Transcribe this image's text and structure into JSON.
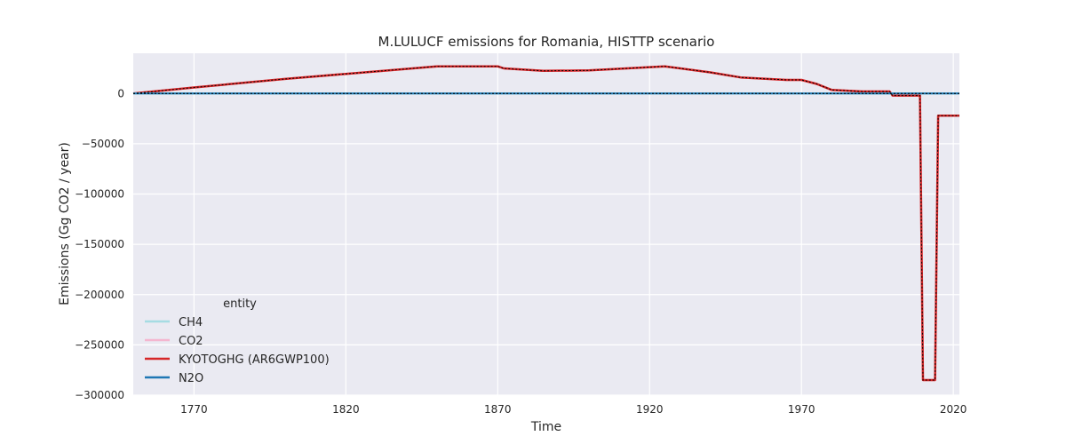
{
  "chart_data": {
    "type": "line",
    "title": "M.LULUCF emissions for Romania, HISTTP scenario",
    "xlabel": "Time",
    "ylabel": "Emissions (Gg CO2 / year)",
    "xlim": [
      1750,
      2022
    ],
    "ylim": [
      -300000,
      40000
    ],
    "x_ticks": [
      1770,
      1820,
      1870,
      1920,
      1970,
      2020
    ],
    "y_ticks": [
      0,
      -50000,
      -100000,
      -150000,
      -200000,
      -250000,
      -300000
    ],
    "grid": true,
    "legend": {
      "title": "entity",
      "position": "lower-left",
      "entries": [
        "CH4",
        "CO2",
        "KYOTOGHG (AR6GWP100)",
        "N2O"
      ]
    },
    "colors": {
      "CH4": "#a6dce3",
      "CO2": "#f4b6cf",
      "KYOTOGHG (AR6GWP100)": "#d62728",
      "N2O": "#1f77b4",
      "background": "#eaeaf2",
      "grid": "#ffffff",
      "dotted_overlay": "#000000"
    },
    "series": [
      {
        "name": "CH4",
        "x": [
          1750,
          2022
        ],
        "y": [
          0,
          0
        ]
      },
      {
        "name": "N2O",
        "x": [
          1750,
          2022
        ],
        "y": [
          0,
          0
        ]
      },
      {
        "name": "CO2",
        "x": [
          1750,
          1770,
          1800,
          1820,
          1850,
          1870,
          1872,
          1885,
          1900,
          1925,
          1940,
          1950,
          1965,
          1970,
          1975,
          1980,
          1990,
          1999,
          2000,
          2009,
          2010,
          2014,
          2015,
          2022
        ],
        "y": [
          0,
          6000,
          14500,
          19500,
          27000,
          27000,
          25000,
          22500,
          23000,
          27000,
          21000,
          16000,
          13500,
          13500,
          9500,
          3500,
          2000,
          2000,
          -2000,
          -2000,
          -285000,
          -285000,
          -22000,
          -22000
        ]
      },
      {
        "name": "KYOTOGHG (AR6GWP100)",
        "x": [
          1750,
          1770,
          1800,
          1820,
          1850,
          1870,
          1872,
          1885,
          1900,
          1925,
          1940,
          1950,
          1965,
          1970,
          1975,
          1980,
          1990,
          1999,
          2000,
          2009,
          2010,
          2014,
          2015,
          2022
        ],
        "y": [
          0,
          6000,
          14500,
          19500,
          27000,
          27000,
          25000,
          22500,
          23000,
          27000,
          21000,
          16000,
          13500,
          13500,
          9500,
          3500,
          2000,
          2000,
          -2000,
          -2000,
          -285000,
          -285000,
          -22000,
          -22000
        ]
      }
    ]
  }
}
